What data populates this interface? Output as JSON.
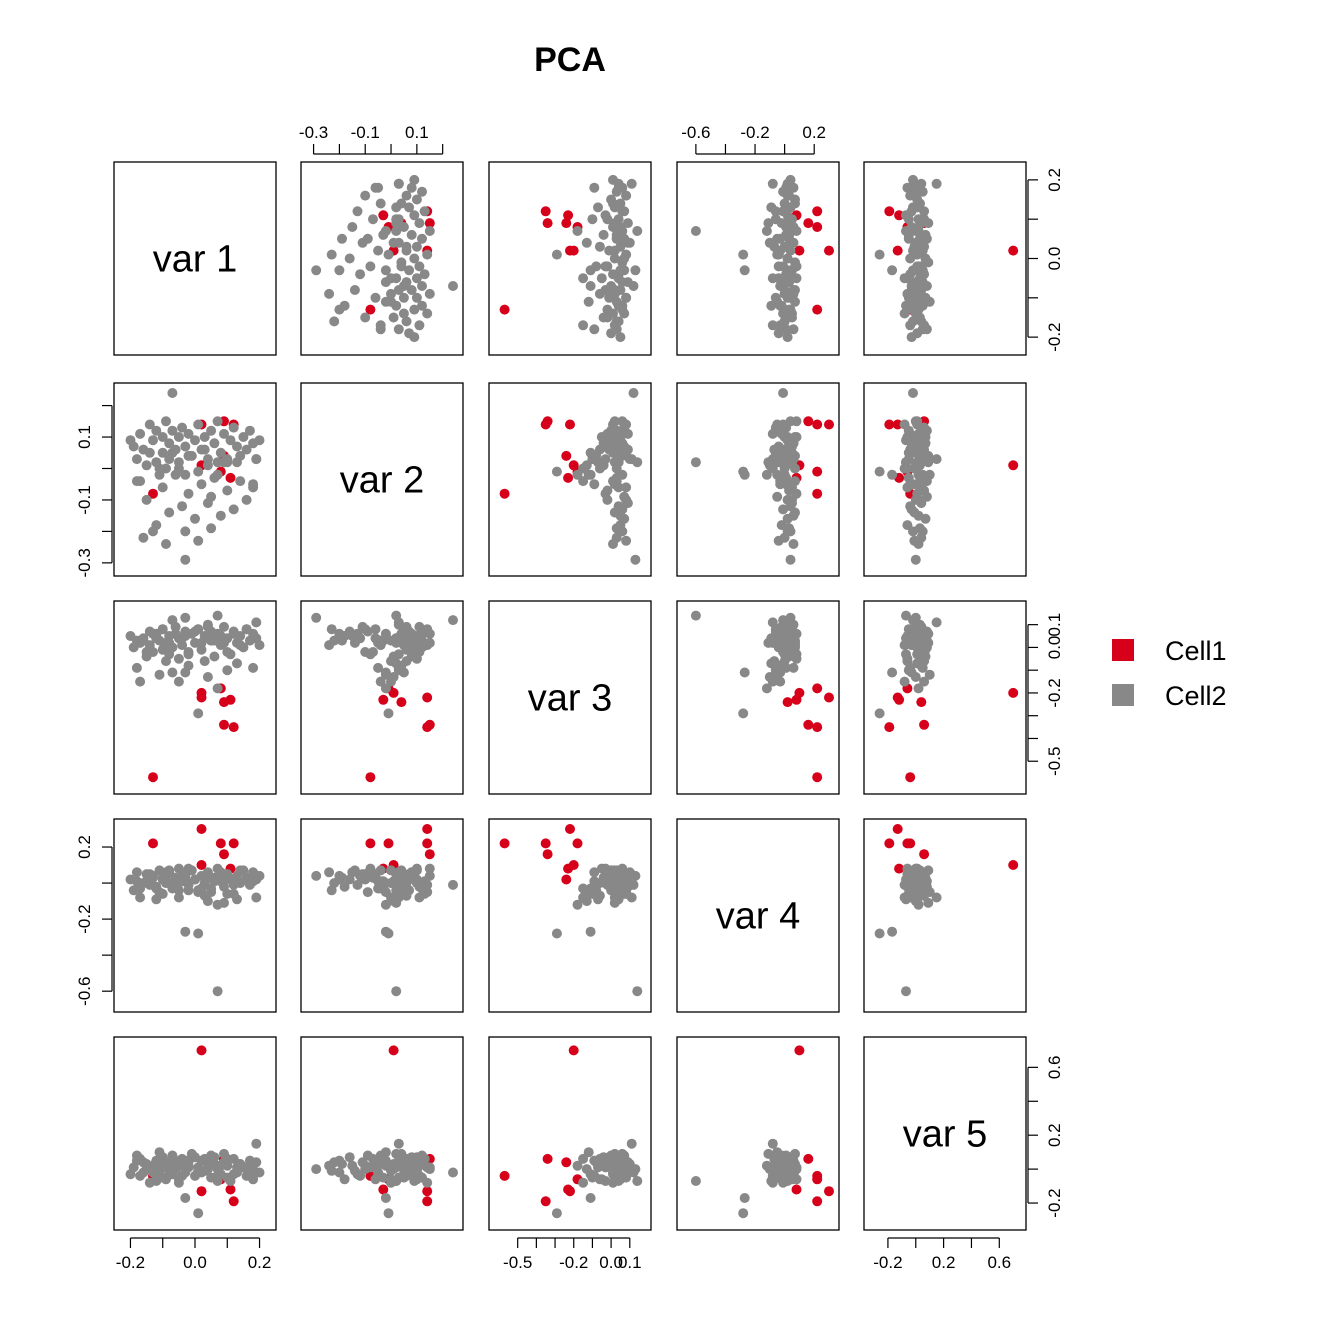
{
  "chart_data": {
    "type": "scatter",
    "title": "PCA",
    "diagonal_labels": [
      "var 1",
      "var 2",
      "var 3",
      "var 4",
      "var 5"
    ],
    "variables": [
      {
        "name": "var 1",
        "range": [
          -0.22,
          0.22
        ],
        "ticks": [
          -0.2,
          -0.1,
          0.0,
          0.1,
          0.2
        ],
        "tick_labels": [
          "-0.2",
          "",
          "0.0",
          "",
          "0.2"
        ]
      },
      {
        "name": "var 2",
        "range": [
          -0.31,
          0.24
        ],
        "ticks": [
          -0.3,
          -0.2,
          -0.1,
          0.0,
          0.1,
          0.2
        ],
        "tick_labels": [
          "-0.3",
          "",
          "-0.1",
          "",
          "0.1",
          ""
        ]
      },
      {
        "name": "var 3",
        "range": [
          -0.6,
          0.16
        ],
        "ticks": [
          -0.5,
          -0.4,
          -0.3,
          -0.2,
          -0.1,
          0.0,
          0.1
        ],
        "tick_labels": [
          "-0.5",
          "",
          "",
          "-0.2",
          "",
          "0.0",
          "0.1"
        ]
      },
      {
        "name": "var 4",
        "range": [
          -0.66,
          0.3
        ],
        "ticks": [
          -0.6,
          -0.4,
          -0.2,
          0.0,
          0.2
        ],
        "tick_labels": [
          "-0.6",
          "",
          "-0.2",
          "",
          "0.2"
        ]
      },
      {
        "name": "var 5",
        "range": [
          -0.3,
          0.72
        ],
        "ticks": [
          -0.2,
          0.0,
          0.2,
          0.4,
          0.6
        ],
        "tick_labels": [
          "-0.2",
          "",
          "0.2",
          "",
          "0.6"
        ]
      }
    ],
    "legend": {
      "position": "right",
      "entries": [
        {
          "name": "Cell1",
          "color": "#d7001a"
        },
        {
          "name": "Cell2",
          "color": "#888888"
        }
      ]
    },
    "series": [
      {
        "name": "Cell1",
        "color": "#d7001a",
        "points": [
          [
            0.02,
            0.14,
            -0.22,
            0.3,
            -0.13
          ],
          [
            0.12,
            0.14,
            -0.35,
            0.22,
            -0.19
          ],
          [
            -0.13,
            -0.08,
            -0.57,
            0.22,
            -0.04
          ],
          [
            0.08,
            -0.01,
            -0.18,
            0.22,
            -0.06
          ],
          [
            0.09,
            0.15,
            -0.34,
            0.16,
            0.06
          ],
          [
            0.02,
            0.01,
            -0.2,
            0.1,
            0.7
          ],
          [
            0.11,
            -0.03,
            -0.23,
            0.08,
            -0.12
          ],
          [
            0.09,
            0.04,
            -0.24,
            0.02,
            0.04
          ]
        ]
      },
      {
        "name": "Cell2",
        "color": "#888888",
        "points": [
          [
            -0.2,
            0.09,
            0.05,
            0.02,
            -0.03
          ],
          [
            -0.19,
            0.07,
            0.0,
            -0.04,
            0.01
          ],
          [
            -0.18,
            0.03,
            -0.09,
            0.06,
            0.05
          ],
          [
            -0.17,
            0.11,
            0.02,
            -0.08,
            -0.04
          ],
          [
            -0.16,
            0.06,
            0.04,
            0.0,
            -0.02
          ],
          [
            -0.15,
            0.01,
            -0.04,
            0.01,
            0.03
          ],
          [
            -0.14,
            0.05,
            0.07,
            0.05,
            0.0
          ],
          [
            -0.14,
            0.14,
            0.01,
            -0.01,
            -0.08
          ],
          [
            -0.13,
            0.09,
            -0.02,
            0.03,
            0.02
          ],
          [
            -0.12,
            0.12,
            0.06,
            -0.03,
            0.05
          ],
          [
            -0.11,
            0.0,
            0.03,
            0.07,
            -0.01
          ],
          [
            -0.1,
            0.1,
            -0.01,
            0.02,
            0.07
          ],
          [
            -0.1,
            0.05,
            0.08,
            -0.06,
            -0.05
          ],
          [
            -0.09,
            0.15,
            0.02,
            0.04,
            0.01
          ],
          [
            -0.08,
            0.03,
            -0.03,
            0.0,
            0.04
          ],
          [
            -0.08,
            0.08,
            0.05,
            0.06,
            -0.03
          ],
          [
            -0.07,
            0.12,
            0.0,
            -0.02,
            0.08
          ],
          [
            -0.06,
            0.06,
            0.09,
            0.03,
            0.0
          ],
          [
            -0.05,
            0.1,
            -0.05,
            0.08,
            -0.06
          ],
          [
            -0.05,
            0.02,
            0.04,
            -0.04,
            0.03
          ],
          [
            -0.04,
            0.13,
            0.01,
            0.01,
            0.06
          ],
          [
            -0.03,
            0.07,
            0.07,
            0.05,
            -0.02
          ],
          [
            -0.02,
            0.11,
            -0.02,
            -0.01,
            0.02
          ],
          [
            -0.01,
            0.04,
            0.06,
            0.07,
            0.09
          ],
          [
            0.0,
            0.09,
            0.02,
            0.02,
            -0.04
          ],
          [
            0.01,
            0.14,
            0.08,
            -0.05,
            0.01
          ],
          [
            0.02,
            0.06,
            -0.01,
            0.04,
            0.05
          ],
          [
            0.03,
            0.1,
            0.05,
            0.0,
            -0.01
          ],
          [
            0.04,
            0.03,
            0.1,
            0.06,
            0.03
          ],
          [
            0.05,
            0.12,
            0.03,
            -0.03,
            -0.05
          ],
          [
            0.06,
            0.08,
            -0.04,
            0.03,
            0.07
          ],
          [
            0.07,
            0.15,
            0.06,
            0.08,
            0.0
          ],
          [
            0.08,
            0.05,
            0.01,
            0.01,
            -0.03
          ],
          [
            0.09,
            0.11,
            0.09,
            -0.02,
            0.04
          ],
          [
            0.1,
            0.02,
            0.04,
            0.05,
            0.02
          ],
          [
            0.11,
            0.09,
            -0.03,
            0.02,
            -0.07
          ],
          [
            0.12,
            0.13,
            0.07,
            -0.06,
            0.06
          ],
          [
            0.13,
            0.07,
            0.02,
            0.04,
            -0.02
          ],
          [
            0.14,
            0.04,
            0.05,
            0.0,
            0.03
          ],
          [
            0.15,
            0.1,
            0.0,
            0.07,
            0.01
          ],
          [
            0.16,
            0.06,
            0.08,
            0.03,
            -0.04
          ],
          [
            0.17,
            0.12,
            0.03,
            -0.01,
            0.05
          ],
          [
            0.18,
            0.08,
            0.06,
            0.06,
            0.0
          ],
          [
            0.19,
            0.03,
            0.04,
            0.02,
            0.04
          ],
          [
            0.2,
            0.09,
            0.01,
            0.04,
            -0.02
          ],
          [
            -0.18,
            -0.04,
            0.03,
            0.01,
            0.08
          ],
          [
            -0.15,
            -0.1,
            -0.02,
            0.05,
            0.02
          ],
          [
            -0.12,
            -0.18,
            0.05,
            -0.02,
            -0.06
          ],
          [
            -0.1,
            -0.06,
            0.08,
            0.03,
            0.03
          ],
          [
            -0.08,
            -0.14,
            0.02,
            0.07,
            -0.01
          ],
          [
            -0.06,
            -0.02,
            0.06,
            0.0,
            0.05
          ],
          [
            -0.04,
            -0.12,
            0.04,
            0.04,
            -0.04
          ],
          [
            -0.02,
            -0.08,
            -0.03,
            0.08,
            0.01
          ],
          [
            0.0,
            -0.16,
            0.07,
            0.02,
            0.07
          ],
          [
            0.02,
            -0.05,
            0.02,
            -0.03,
            -0.02
          ],
          [
            0.04,
            -0.11,
            0.09,
            0.05,
            0.04
          ],
          [
            0.06,
            -0.03,
            0.03,
            0.01,
            -0.05
          ],
          [
            0.08,
            -0.15,
            0.05,
            0.06,
            0.02
          ],
          [
            0.1,
            -0.07,
            -0.02,
            0.03,
            0.06
          ],
          [
            0.12,
            -0.13,
            0.06,
            -0.01,
            -0.03
          ],
          [
            0.14,
            -0.04,
            0.01,
            0.07,
            0.03
          ],
          [
            0.16,
            -0.1,
            0.08,
            0.02,
            0.0
          ],
          [
            0.18,
            -0.06,
            0.04,
            0.05,
            -0.06
          ],
          [
            -0.16,
            -0.22,
            0.03,
            0.0,
            0.04
          ],
          [
            -0.13,
            -0.2,
            0.06,
            0.04,
            -0.02
          ],
          [
            -0.09,
            -0.24,
            0.01,
            0.06,
            0.02
          ],
          [
            -0.03,
            -0.2,
            0.05,
            0.02,
            0.05
          ],
          [
            0.01,
            -0.23,
            0.08,
            -0.04,
            -0.01
          ],
          [
            0.05,
            -0.19,
            0.03,
            0.03,
            0.03
          ],
          [
            -0.11,
            -0.02,
            -0.12,
            -0.05,
            0.1
          ],
          [
            -0.05,
            0.0,
            -0.15,
            -0.08,
            -0.08
          ],
          [
            0.04,
            0.01,
            -0.13,
            -0.1,
            0.0
          ],
          [
            0.07,
            -0.02,
            -0.18,
            -0.12,
            0.02
          ],
          [
            0.1,
            0.03,
            -0.1,
            -0.06,
            -0.05
          ],
          [
            -0.02,
            0.04,
            -0.08,
            -0.04,
            0.04
          ],
          [
            0.13,
            0.02,
            -0.07,
            -0.09,
            0.01
          ],
          [
            -0.07,
            0.05,
            -0.11,
            -0.03,
            -0.03
          ],
          [
            0.03,
            0.06,
            -0.06,
            -0.07,
            0.06
          ],
          [
            -0.07,
            0.24,
            0.12,
            -0.01,
            -0.02
          ],
          [
            -0.03,
            -0.29,
            0.13,
            0.04,
            0.0
          ],
          [
            0.01,
            -0.01,
            -0.29,
            -0.28,
            -0.26
          ],
          [
            -0.03,
            -0.02,
            -0.11,
            -0.27,
            -0.17
          ],
          [
            0.07,
            0.02,
            0.14,
            -0.6,
            -0.07
          ],
          [
            0.19,
            0.03,
            0.11,
            -0.08,
            0.15
          ],
          [
            -0.17,
            -0.04,
            -0.15,
            -0.03,
            0.06
          ],
          [
            0.18,
            -0.05,
            -0.09,
            0.01,
            -0.04
          ],
          [
            0.09,
            0.02,
            0.02,
            -0.11,
            0.09
          ],
          [
            -0.12,
            0.02,
            0.04,
            -0.09,
            -0.07
          ],
          [
            0.05,
            -0.09,
            0.07,
            -0.05,
            0.08
          ],
          [
            -0.09,
            0.0,
            -0.06,
            0.0,
            -0.06
          ]
        ]
      }
    ]
  }
}
